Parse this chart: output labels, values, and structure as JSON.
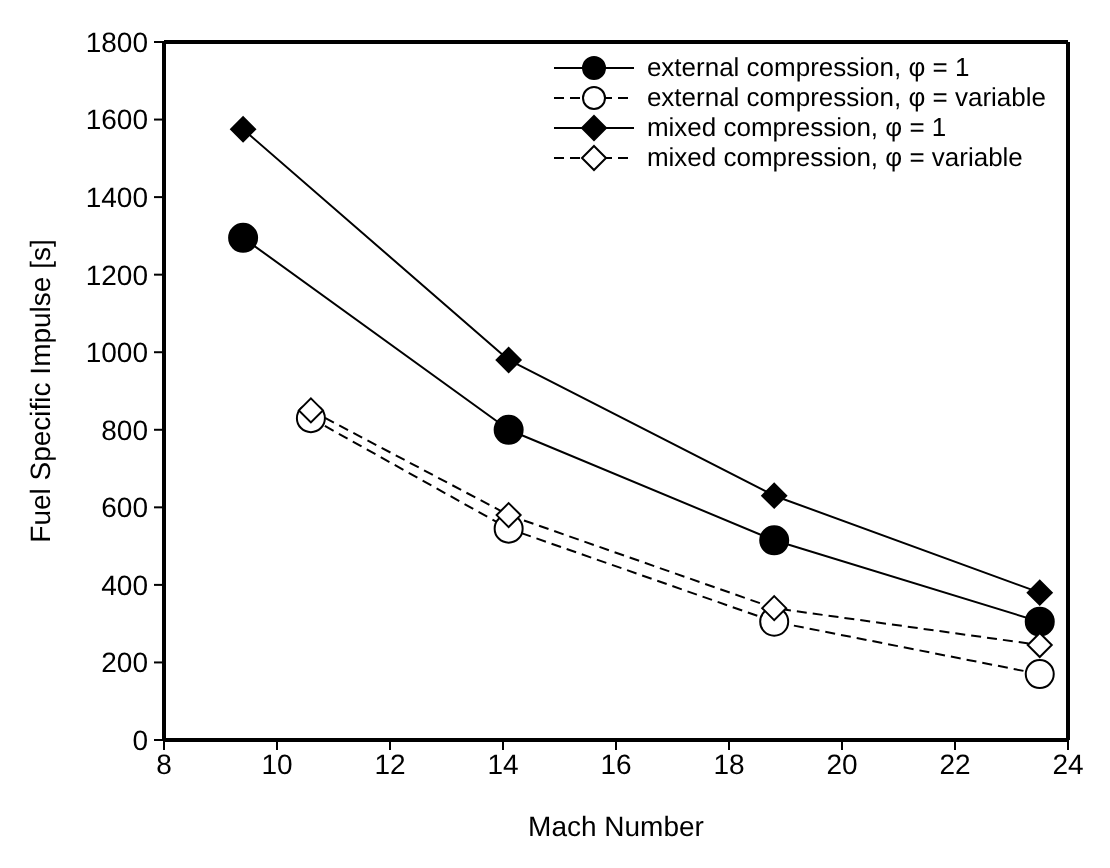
{
  "chart_data": {
    "type": "line",
    "xlabel": "Mach Number",
    "ylabel": "Fuel Specific Impulse [s]",
    "xlim": [
      8,
      24
    ],
    "xticks": [
      8,
      10,
      12,
      14,
      16,
      18,
      20,
      22,
      24
    ],
    "ylim": [
      0,
      1800
    ],
    "yticks": [
      0,
      200,
      400,
      600,
      800,
      1000,
      1200,
      1400,
      1600,
      1800
    ],
    "grid": false,
    "legend": "top right",
    "series": [
      {
        "name": "external compression, φ = 1",
        "color": "#000000",
        "marker": "circle",
        "line_style": "solid",
        "x": [
          9.4,
          14.1,
          18.8,
          23.5
        ],
        "values": [
          1295,
          800,
          515,
          305
        ]
      },
      {
        "name": "external compression, φ = variable",
        "color": "#000000",
        "marker": "circle-open",
        "line_style": "dashed",
        "x": [
          10.6,
          14.1,
          18.8,
          23.5
        ],
        "values": [
          830,
          545,
          305,
          170
        ]
      },
      {
        "name": "mixed compression, φ = 1",
        "color": "#000000",
        "marker": "diamond",
        "line_style": "solid",
        "x": [
          9.4,
          14.1,
          18.8,
          23.5
        ],
        "values": [
          1575,
          980,
          630,
          380
        ]
      },
      {
        "name": "mixed compression, φ = variable",
        "color": "#000000",
        "marker": "diamond-open",
        "line_style": "dashed",
        "x": [
          10.6,
          14.1,
          18.8,
          23.5
        ],
        "values": [
          850,
          580,
          340,
          245
        ]
      }
    ]
  }
}
